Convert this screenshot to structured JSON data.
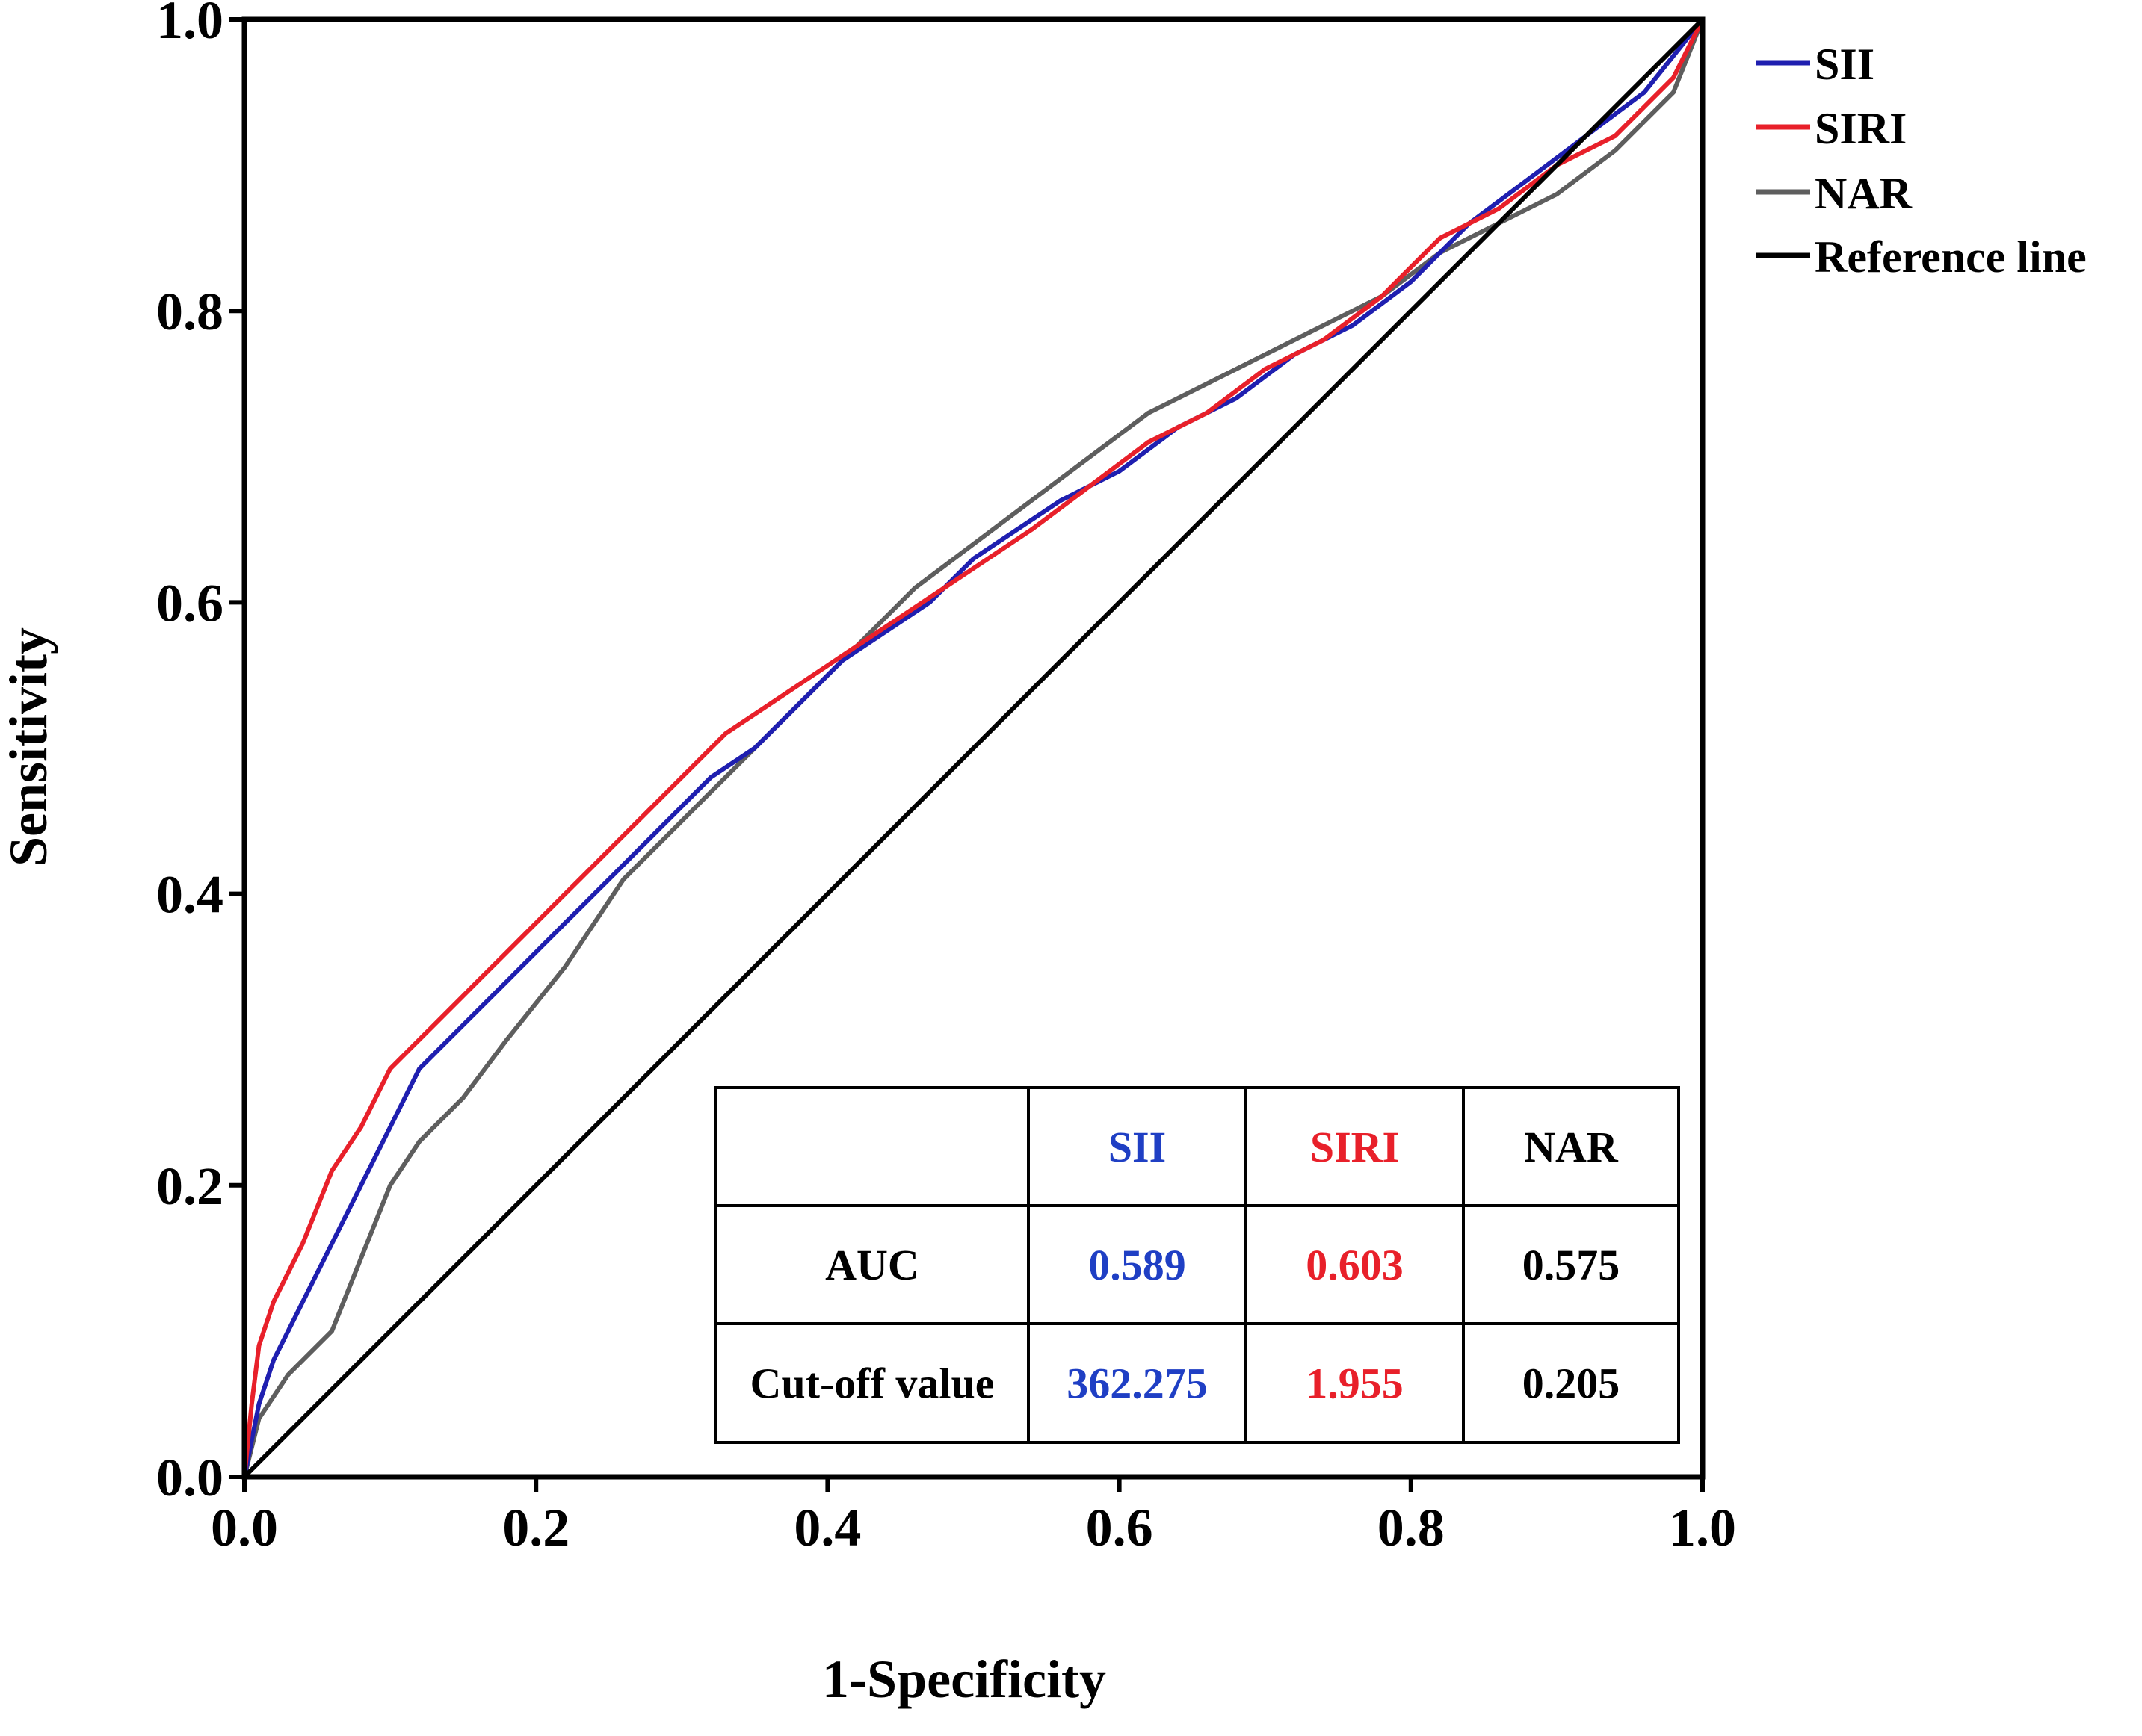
{
  "chart_data": {
    "type": "line",
    "title": "",
    "xlabel": "1-Specificity",
    "ylabel": "Sensitivity",
    "xlim": [
      0,
      1
    ],
    "ylim": [
      0,
      1
    ],
    "grid": false,
    "xticks": [
      "0.0",
      "0.2",
      "0.4",
      "0.6",
      "0.8",
      "1.0"
    ],
    "yticks": [
      "0.0",
      "0.2",
      "0.4",
      "0.6",
      "0.8",
      "1.0"
    ],
    "legend_position": "top-right",
    "series": [
      {
        "name": "SII",
        "color": "#1f1fb0",
        "x": [
          0,
          0.01,
          0.02,
          0.04,
          0.06,
          0.08,
          0.1,
          0.12,
          0.15,
          0.18,
          0.2,
          0.23,
          0.26,
          0.29,
          0.32,
          0.35,
          0.38,
          0.41,
          0.44,
          0.47,
          0.5,
          0.53,
          0.56,
          0.6,
          0.64,
          0.68,
          0.72,
          0.76,
          0.8,
          0.84,
          0.88,
          0.92,
          0.96,
          1.0
        ],
        "y": [
          0,
          0.05,
          0.08,
          0.12,
          0.16,
          0.2,
          0.24,
          0.28,
          0.31,
          0.34,
          0.36,
          0.39,
          0.42,
          0.45,
          0.48,
          0.5,
          0.53,
          0.56,
          0.58,
          0.6,
          0.63,
          0.65,
          0.67,
          0.69,
          0.72,
          0.74,
          0.77,
          0.79,
          0.82,
          0.86,
          0.89,
          0.92,
          0.95,
          1.0
        ]
      },
      {
        "name": "SIRI",
        "color": "#e8202a",
        "x": [
          0,
          0.005,
          0.01,
          0.02,
          0.04,
          0.06,
          0.08,
          0.1,
          0.12,
          0.15,
          0.18,
          0.21,
          0.24,
          0.27,
          0.3,
          0.33,
          0.36,
          0.39,
          0.42,
          0.45,
          0.48,
          0.51,
          0.54,
          0.58,
          0.62,
          0.66,
          0.7,
          0.74,
          0.78,
          0.82,
          0.86,
          0.9,
          0.94,
          0.98,
          1.0
        ],
        "y": [
          0,
          0.05,
          0.09,
          0.12,
          0.16,
          0.21,
          0.24,
          0.28,
          0.3,
          0.33,
          0.36,
          0.39,
          0.42,
          0.45,
          0.48,
          0.51,
          0.53,
          0.55,
          0.57,
          0.59,
          0.61,
          0.63,
          0.65,
          0.68,
          0.71,
          0.73,
          0.76,
          0.78,
          0.81,
          0.85,
          0.87,
          0.9,
          0.92,
          0.96,
          1.0
        ]
      },
      {
        "name": "NAR",
        "color": "#5e5e5e",
        "x": [
          0,
          0.01,
          0.03,
          0.06,
          0.08,
          0.1,
          0.12,
          0.15,
          0.18,
          0.22,
          0.26,
          0.3,
          0.34,
          0.38,
          0.42,
          0.46,
          0.5,
          0.54,
          0.58,
          0.62,
          0.66,
          0.7,
          0.74,
          0.78,
          0.82,
          0.86,
          0.9,
          0.94,
          0.98,
          1.0
        ],
        "y": [
          0,
          0.04,
          0.07,
          0.1,
          0.15,
          0.2,
          0.23,
          0.26,
          0.3,
          0.35,
          0.41,
          0.45,
          0.49,
          0.53,
          0.57,
          0.61,
          0.64,
          0.67,
          0.7,
          0.73,
          0.75,
          0.77,
          0.79,
          0.81,
          0.84,
          0.86,
          0.88,
          0.91,
          0.95,
          1.0
        ]
      },
      {
        "name": "Reference line",
        "color": "#000000",
        "x": [
          0,
          1
        ],
        "y": [
          0,
          1
        ]
      }
    ],
    "table": {
      "columns": [
        "",
        "SII",
        "SIRI",
        "NAR"
      ],
      "column_colors": [
        "#000000",
        "#1f3fc4",
        "#e8202a",
        "#000000"
      ],
      "rows": [
        {
          "label": "AUC",
          "values": [
            "0.589",
            "0.603",
            "0.575"
          ]
        },
        {
          "label": "Cut-off value",
          "values": [
            "362.275",
            "1.955",
            "0.205"
          ]
        }
      ]
    }
  }
}
